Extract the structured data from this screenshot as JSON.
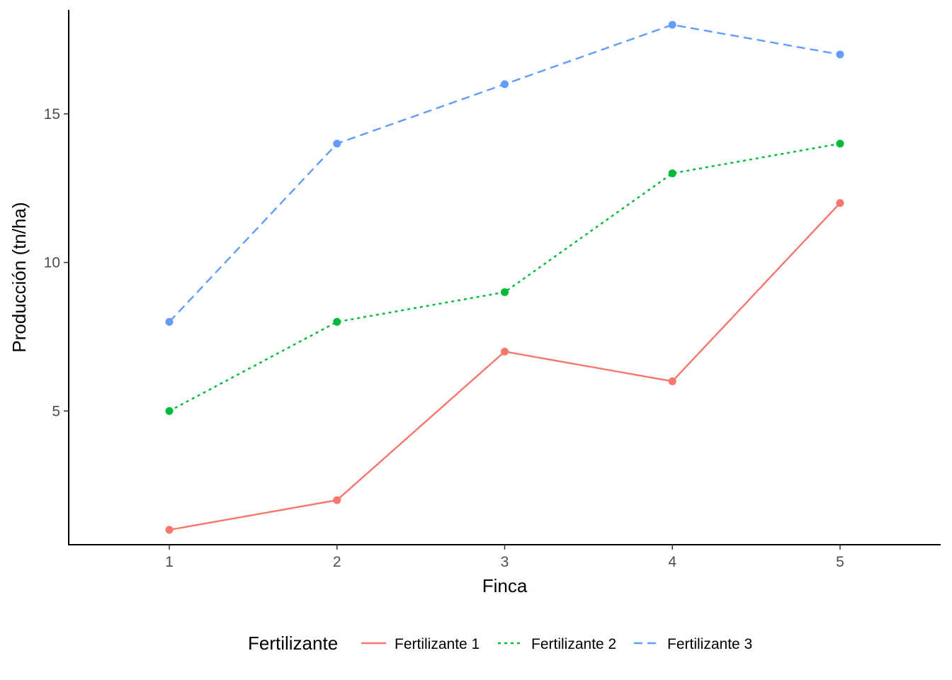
{
  "chart_data": {
    "type": "line",
    "title": "",
    "xlabel": "Finca",
    "ylabel": "Producción (tn/ha)",
    "x": [
      1,
      2,
      3,
      4,
      5
    ],
    "x_ticks": [
      "1",
      "2",
      "3",
      "4",
      "5"
    ],
    "y_ticks": [
      5,
      10,
      15
    ],
    "ylim": [
      0.5,
      18.5
    ],
    "xlim": [
      0.4,
      5.6
    ],
    "grid": false,
    "legend": {
      "title": "Fertilizante",
      "placement": "bottom"
    },
    "series": [
      {
        "name": "Fertilizante 1",
        "values": [
          1,
          2,
          7,
          6,
          12
        ],
        "color": "#F8766D",
        "linetype": "solid"
      },
      {
        "name": "Fertilizante 2",
        "values": [
          5,
          8,
          9,
          13,
          14
        ],
        "color": "#00BA38",
        "linetype": "dotted"
      },
      {
        "name": "Fertilizante 3",
        "values": [
          8,
          14,
          16,
          18,
          17
        ],
        "color": "#619CFF",
        "linetype": "dashed"
      }
    ]
  }
}
